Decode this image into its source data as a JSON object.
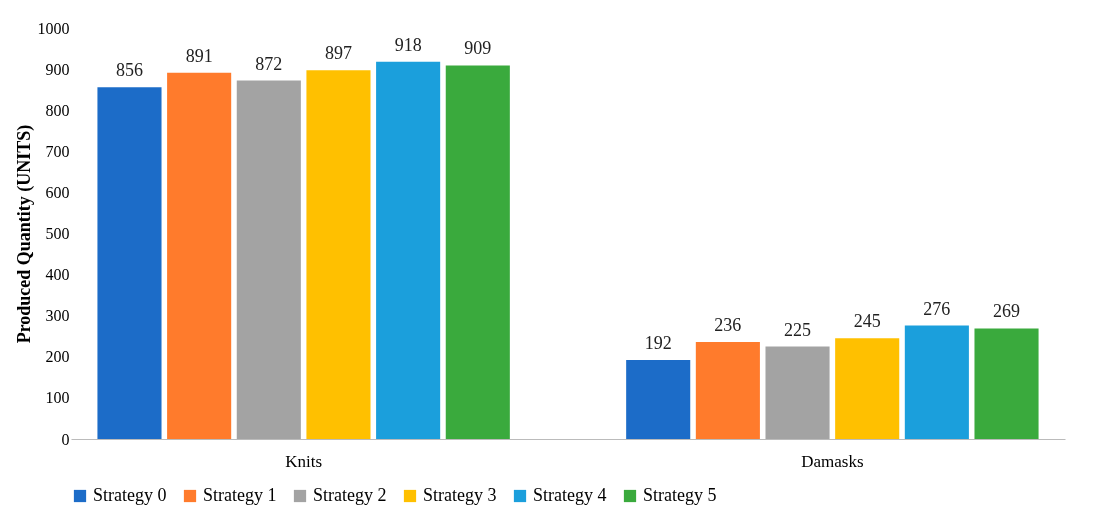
{
  "chart_data": {
    "type": "bar",
    "ylabel": "Produced Quantity (UNITS)",
    "categories": [
      "Knits",
      "Damasks"
    ],
    "series": [
      {
        "name": "Strategy 0",
        "color": "#1c6cc8",
        "values": [
          856,
          192
        ]
      },
      {
        "name": "Strategy 1",
        "color": "#ff7b2c",
        "values": [
          891,
          236
        ]
      },
      {
        "name": "Strategy 2",
        "color": "#a3a3a3",
        "values": [
          872,
          225
        ]
      },
      {
        "name": "Strategy 3",
        "color": "#ffc000",
        "values": [
          897,
          245
        ]
      },
      {
        "name": "Strategy 4",
        "color": "#1b9fdc",
        "values": [
          918,
          276
        ]
      },
      {
        "name": "Strategy 5",
        "color": "#3aaa3d",
        "values": [
          909,
          269
        ]
      }
    ],
    "ylim": [
      0,
      1000
    ],
    "yticks": [
      0,
      100,
      200,
      300,
      400,
      500,
      600,
      700,
      800,
      900,
      1000
    ],
    "data_labels": true,
    "legend": "bottom",
    "grid": false
  }
}
